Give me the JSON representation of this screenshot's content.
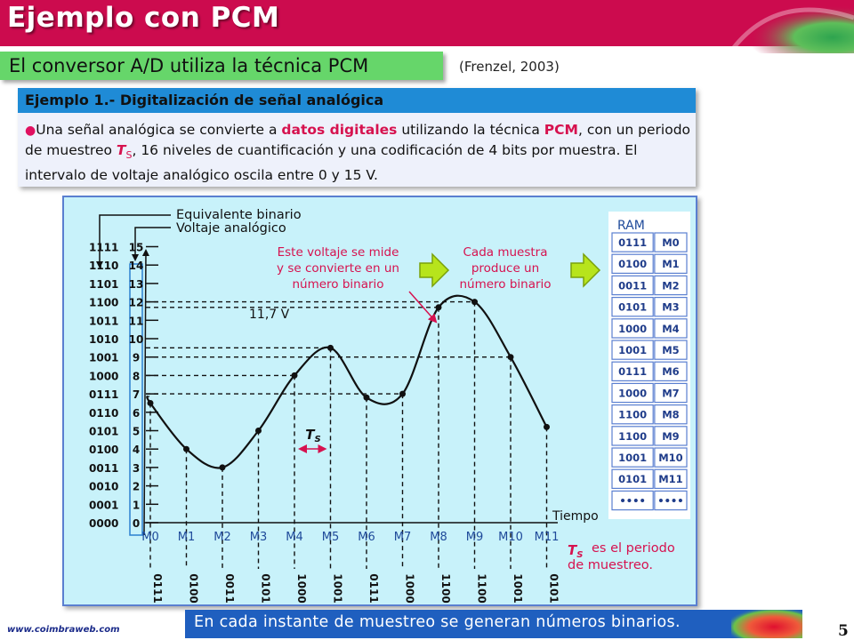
{
  "slide": {
    "title": "Ejemplo con PCM",
    "subtitle": "El conversor A/D utiliza la técnica PCM",
    "citation": "(Frenzel, 2003)",
    "page_number": "5",
    "website": "www.coimbraweb.com",
    "footer_text": "En cada instante de muestreo se generan números binarios."
  },
  "example": {
    "title": "Ejemplo 1.- Digitalización de señal analógica",
    "text_1": "Una señal analógica se convierte a ",
    "text_hl_1": "datos digitales",
    "text_2": " utilizando la técnica ",
    "text_hl_2": "PCM",
    "text_3": ", con un periodo de muestreo ",
    "ts_var": "T",
    "ts_sub": "S",
    "text_4": ", 16 niveles de cuantificación y una codificación de 4 bits por muestra. El intervalo de voltaje analógico oscila entre 0 y 15 V."
  },
  "diagram": {
    "label_binary": "Equivalente binario",
    "label_voltage": "Voltaje analógico",
    "callout_1": [
      "Este voltaje se mide",
      "y se convierte en un",
      "número binario"
    ],
    "callout_2": [
      "Cada muestra",
      "produce un",
      "número binario"
    ],
    "voltage_label": "11,7 V",
    "ts_label": "T",
    "ts_label_sub": "S",
    "time_label": "Tiempo",
    "period_note_1": "es el periodo",
    "period_note_2": "de muestreo.",
    "period_note_var": "T",
    "period_note_sub": "S",
    "ram_title": "RAM",
    "levels": [
      {
        "bin": "1111",
        "dec": "15"
      },
      {
        "bin": "1110",
        "dec": "14"
      },
      {
        "bin": "1101",
        "dec": "13"
      },
      {
        "bin": "1100",
        "dec": "12"
      },
      {
        "bin": "1011",
        "dec": "11"
      },
      {
        "bin": "1010",
        "dec": "10"
      },
      {
        "bin": "1001",
        "dec": "9"
      },
      {
        "bin": "1000",
        "dec": "8"
      },
      {
        "bin": "0111",
        "dec": "7"
      },
      {
        "bin": "0110",
        "dec": "6"
      },
      {
        "bin": "0101",
        "dec": "5"
      },
      {
        "bin": "0100",
        "dec": "4"
      },
      {
        "bin": "0011",
        "dec": "3"
      },
      {
        "bin": "0010",
        "dec": "2"
      },
      {
        "bin": "0001",
        "dec": "1"
      },
      {
        "bin": "0000",
        "dec": "0"
      }
    ],
    "samples": [
      {
        "name": "M0",
        "value": 6.5,
        "code": "0111"
      },
      {
        "name": "M1",
        "value": 4.0,
        "code": "0100"
      },
      {
        "name": "M2",
        "value": 3.0,
        "code": "0011"
      },
      {
        "name": "M3",
        "value": 5.0,
        "code": "0101"
      },
      {
        "name": "M4",
        "value": 8.0,
        "code": "1000"
      },
      {
        "name": "M5",
        "value": 9.5,
        "code": "1001"
      },
      {
        "name": "M6",
        "value": 6.8,
        "code": "0111"
      },
      {
        "name": "M7",
        "value": 7.0,
        "code": "1000"
      },
      {
        "name": "M8",
        "value": 11.7,
        "code": "1100"
      },
      {
        "name": "M9",
        "value": 12.0,
        "code": "1100"
      },
      {
        "name": "M10",
        "value": 9.0,
        "code": "1001"
      },
      {
        "name": "M11",
        "value": 5.2,
        "code": "0101"
      }
    ],
    "ram": [
      {
        "code": "0111",
        "label": "M0"
      },
      {
        "code": "0100",
        "label": "M1"
      },
      {
        "code": "0011",
        "label": "M2"
      },
      {
        "code": "0101",
        "label": "M3"
      },
      {
        "code": "1000",
        "label": "M4"
      },
      {
        "code": "1001",
        "label": "M5"
      },
      {
        "code": "0111",
        "label": "M6"
      },
      {
        "code": "1000",
        "label": "M7"
      },
      {
        "code": "1100",
        "label": "M8"
      },
      {
        "code": "1100",
        "label": "M9"
      },
      {
        "code": "1001",
        "label": "M10"
      },
      {
        "code": "0101",
        "label": "M11"
      },
      {
        "code": "••••",
        "label": "••••"
      }
    ]
  },
  "colors": {
    "header": "#cc0b4e",
    "subtitle_bar": "#66d66a",
    "example_header": "#1f8bd6",
    "highlight": "#d6124f",
    "diagram_bg": "#c8f2fa",
    "footer": "#1f5fbf",
    "arrow_fill": "#b7e41c"
  }
}
